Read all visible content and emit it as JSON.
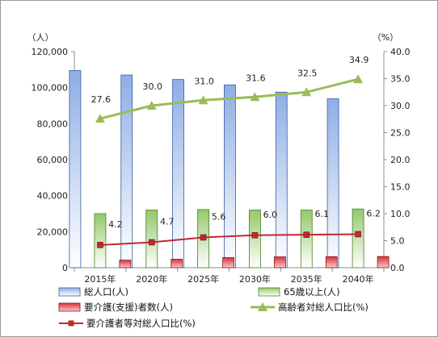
{
  "chart_data": {
    "type": "bar",
    "categories": [
      "2015年",
      "2020年",
      "2025年",
      "2030年",
      "2035年",
      "2040年"
    ],
    "series": [
      {
        "name": "総人口(人)",
        "kind": "bar",
        "axis": "left",
        "color": "#8eaee6",
        "values": [
          109500,
          107000,
          104500,
          101500,
          97500,
          93800
        ]
      },
      {
        "name": "65歳以上(人)",
        "kind": "bar",
        "axis": "left",
        "color": "#92c969",
        "values": [
          30000,
          32000,
          32300,
          32000,
          32000,
          32600
        ]
      },
      {
        "name": "要介護(支援)者数(人)",
        "kind": "bar",
        "axis": "left",
        "color": "#d8323a",
        "values": [
          4200,
          4700,
          5600,
          6000,
          6100,
          6200
        ]
      },
      {
        "name": "高齢者対総人口比(%)",
        "kind": "line",
        "axis": "right",
        "color": "#9bbb59",
        "values": [
          27.6,
          30.0,
          31.0,
          31.6,
          32.5,
          34.9
        ],
        "labels": [
          "27.6",
          "30.0",
          "31.0",
          "31.6",
          "32.5",
          "34.9"
        ]
      },
      {
        "name": "要介護者等対総人口比(%)",
        "kind": "line",
        "axis": "right",
        "color": "#c0282e",
        "values": [
          4.2,
          4.7,
          5.6,
          6.0,
          6.1,
          6.2
        ],
        "labels": [
          "4.2",
          "4.7",
          "5.6",
          "6.0",
          "6.1",
          "6.2"
        ]
      }
    ],
    "y_left": {
      "unit": "（人）",
      "ylim": [
        0,
        120000
      ],
      "ticks": [
        "0",
        "20,000",
        "40,000",
        "60,000",
        "80,000",
        "100,000",
        "120,000"
      ]
    },
    "y_right": {
      "unit": "（%）",
      "ylim": [
        0,
        40
      ],
      "ticks": [
        "0.0",
        "5.0",
        "10.0",
        "15.0",
        "20.0",
        "25.0",
        "30.0",
        "35.0",
        "40.0"
      ]
    },
    "legend_position": "bottom",
    "grid": false
  }
}
